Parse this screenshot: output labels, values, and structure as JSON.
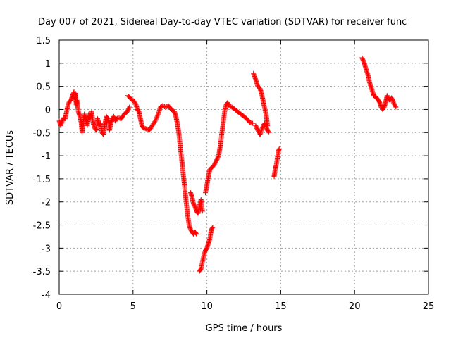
{
  "chart_data": {
    "type": "scatter",
    "title": "Day 007 of 2021, Sidereal Day-to-day VTEC variation (SDTVAR) for receiver func",
    "xlabel": "GPS time / hours",
    "ylabel": "SDTVAR / TECUs",
    "xlim": [
      0,
      25
    ],
    "ylim": [
      -4,
      1.5
    ],
    "xticks": [
      0,
      5,
      10,
      15,
      20,
      25
    ],
    "xtick_labels": [
      "0",
      "5",
      "10",
      "15",
      "20",
      "25"
    ],
    "yticks": [
      1.5,
      1,
      0.5,
      0,
      -0.5,
      -1,
      -1.5,
      -2,
      -2.5,
      -3,
      -3.5,
      -4
    ],
    "ytick_labels": [
      "1.5",
      "1",
      "0.5",
      "0",
      "-0.5",
      "-1",
      "-1.5",
      "-2",
      "-2.5",
      "-3",
      "-3.5",
      "-4"
    ],
    "grid": true,
    "marker_color": "#ff0000",
    "marker": "+",
    "series": [
      {
        "segments": [
          [
            [
              0.0,
              -0.25
            ],
            [
              0.1,
              -0.35
            ],
            [
              0.2,
              -0.25
            ],
            [
              0.3,
              -0.18
            ],
            [
              0.4,
              -0.2
            ],
            [
              0.5,
              -0.05
            ],
            [
              0.6,
              0.1
            ],
            [
              0.7,
              0.18
            ],
            [
              0.8,
              0.2
            ],
            [
              0.9,
              0.3
            ],
            [
              1.0,
              0.38
            ],
            [
              1.05,
              0.25
            ],
            [
              1.1,
              0.35
            ],
            [
              1.15,
              0.1
            ],
            [
              1.2,
              0.2
            ],
            [
              1.3,
              -0.05
            ],
            [
              1.4,
              -0.15
            ],
            [
              1.5,
              -0.3
            ],
            [
              1.55,
              -0.5
            ],
            [
              1.6,
              -0.35
            ],
            [
              1.7,
              -0.1
            ],
            [
              1.8,
              -0.2
            ],
            [
              1.9,
              -0.35
            ],
            [
              2.0,
              -0.1
            ],
            [
              2.1,
              -0.2
            ],
            [
              2.2,
              -0.05
            ],
            [
              2.3,
              -0.3
            ],
            [
              2.4,
              -0.4
            ],
            [
              2.5,
              -0.45
            ],
            [
              2.6,
              -0.2
            ],
            [
              2.7,
              -0.35
            ],
            [
              2.8,
              -0.3
            ],
            [
              2.9,
              -0.5
            ],
            [
              3.0,
              -0.55
            ],
            [
              3.1,
              -0.3
            ],
            [
              3.2,
              -0.15
            ],
            [
              3.3,
              -0.2
            ],
            [
              3.4,
              -0.45
            ],
            [
              3.5,
              -0.3
            ],
            [
              3.6,
              -0.2
            ],
            [
              3.7,
              -0.15
            ],
            [
              3.8,
              -0.25
            ],
            [
              3.9,
              -0.2
            ],
            [
              4.0,
              -0.18
            ],
            [
              4.2,
              -0.2
            ],
            [
              4.4,
              -0.1
            ],
            [
              4.6,
              -0.05
            ],
            [
              4.75,
              0.05
            ]
          ],
          [
            [
              4.65,
              0.3
            ],
            [
              4.8,
              0.25
            ],
            [
              4.95,
              0.2
            ],
            [
              5.1,
              0.18
            ],
            [
              5.2,
              0.1
            ],
            [
              5.3,
              0.0
            ],
            [
              5.4,
              -0.05
            ],
            [
              5.5,
              -0.2
            ],
            [
              5.6,
              -0.35
            ],
            [
              5.7,
              -0.4
            ],
            [
              5.9,
              -0.42
            ],
            [
              6.1,
              -0.45
            ],
            [
              6.3,
              -0.35
            ],
            [
              6.5,
              -0.25
            ],
            [
              6.7,
              -0.1
            ],
            [
              6.85,
              0.05
            ],
            [
              7.0,
              0.08
            ],
            [
              7.2,
              0.05
            ],
            [
              7.4,
              0.08
            ],
            [
              7.6,
              0.0
            ],
            [
              7.8,
              -0.05
            ],
            [
              7.9,
              -0.15
            ],
            [
              8.0,
              -0.3
            ],
            [
              8.1,
              -0.5
            ],
            [
              8.2,
              -0.8
            ],
            [
              8.3,
              -1.1
            ],
            [
              8.4,
              -1.4
            ],
            [
              8.5,
              -1.7
            ],
            [
              8.6,
              -2.0
            ],
            [
              8.7,
              -2.3
            ],
            [
              8.8,
              -2.5
            ],
            [
              8.9,
              -2.6
            ],
            [
              9.0,
              -2.65
            ],
            [
              9.1,
              -2.7
            ],
            [
              9.2,
              -2.65
            ],
            [
              9.3,
              -2.7
            ]
          ],
          [
            [
              8.9,
              -1.8
            ],
            [
              9.0,
              -1.9
            ],
            [
              9.1,
              -2.05
            ],
            [
              9.2,
              -2.1
            ],
            [
              9.3,
              -2.2
            ],
            [
              9.4,
              -2.25
            ],
            [
              9.5,
              -2.1
            ],
            [
              9.6,
              -1.95
            ],
            [
              9.7,
              -2.2
            ]
          ],
          [
            [
              9.5,
              -3.5
            ],
            [
              9.6,
              -3.45
            ],
            [
              9.7,
              -3.3
            ],
            [
              9.8,
              -3.15
            ],
            [
              9.9,
              -3.05
            ],
            [
              10.0,
              -3.0
            ],
            [
              10.1,
              -2.9
            ],
            [
              10.2,
              -2.8
            ],
            [
              10.3,
              -2.6
            ],
            [
              10.4,
              -2.55
            ]
          ],
          [
            [
              9.9,
              -1.8
            ],
            [
              10.0,
              -1.65
            ],
            [
              10.1,
              -1.45
            ],
            [
              10.2,
              -1.3
            ],
            [
              10.35,
              -1.25
            ],
            [
              10.5,
              -1.2
            ],
            [
              10.65,
              -1.1
            ],
            [
              10.8,
              -1.0
            ],
            [
              10.9,
              -0.8
            ],
            [
              11.0,
              -0.55
            ],
            [
              11.1,
              -0.3
            ],
            [
              11.2,
              -0.05
            ],
            [
              11.3,
              0.1
            ],
            [
              11.4,
              0.15
            ],
            [
              11.5,
              0.08
            ],
            [
              11.7,
              0.05
            ],
            [
              11.9,
              0.0
            ],
            [
              12.1,
              -0.05
            ],
            [
              12.3,
              -0.1
            ],
            [
              12.5,
              -0.15
            ],
            [
              12.7,
              -0.2
            ],
            [
              12.9,
              -0.28
            ],
            [
              13.1,
              -0.3
            ]
          ],
          [
            [
              13.15,
              0.78
            ],
            [
              13.3,
              0.65
            ],
            [
              13.45,
              0.5
            ],
            [
              13.6,
              0.45
            ],
            [
              13.7,
              0.35
            ],
            [
              13.8,
              0.2
            ],
            [
              13.9,
              0.05
            ],
            [
              14.0,
              -0.1
            ],
            [
              14.05,
              -0.2
            ],
            [
              14.1,
              -0.35
            ]
          ],
          [
            [
              13.3,
              -0.35
            ],
            [
              13.45,
              -0.45
            ],
            [
              13.6,
              -0.55
            ],
            [
              13.75,
              -0.4
            ],
            [
              13.9,
              -0.3
            ],
            [
              14.0,
              -0.35
            ],
            [
              14.1,
              -0.45
            ],
            [
              14.2,
              -0.5
            ]
          ],
          [
            [
              14.55,
              -1.45
            ],
            [
              14.6,
              -1.35
            ],
            [
              14.65,
              -1.25
            ],
            [
              14.7,
              -1.2
            ],
            [
              14.8,
              -1.0
            ],
            [
              14.85,
              -0.9
            ],
            [
              14.9,
              -0.85
            ]
          ],
          [
            [
              20.5,
              1.12
            ],
            [
              20.6,
              1.05
            ],
            [
              20.7,
              0.95
            ],
            [
              20.8,
              0.85
            ],
            [
              20.9,
              0.75
            ],
            [
              21.0,
              0.6
            ],
            [
              21.1,
              0.5
            ],
            [
              21.2,
              0.4
            ],
            [
              21.3,
              0.3
            ],
            [
              21.4,
              0.28
            ],
            [
              21.5,
              0.25
            ],
            [
              21.6,
              0.2
            ],
            [
              21.7,
              0.15
            ],
            [
              21.8,
              0.05
            ],
            [
              21.9,
              0.0
            ],
            [
              22.0,
              0.05
            ],
            [
              22.1,
              0.15
            ],
            [
              22.2,
              0.3
            ],
            [
              22.3,
              0.22
            ],
            [
              22.4,
              0.2
            ],
            [
              22.5,
              0.25
            ],
            [
              22.6,
              0.18
            ],
            [
              22.7,
              0.1
            ],
            [
              22.8,
              0.05
            ]
          ]
        ]
      }
    ]
  }
}
